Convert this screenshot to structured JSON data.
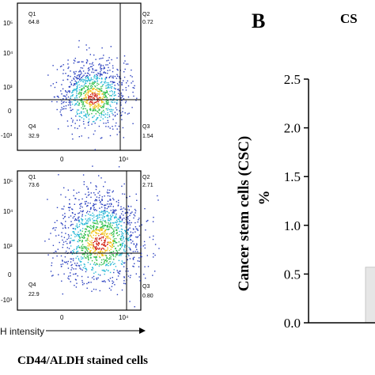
{
  "panel_b": {
    "label": "B",
    "title": "CS",
    "y_axis_label_main": "Cancer stem cells (CSC)",
    "y_axis_label_unit": "%"
  },
  "flow_plots": [
    {
      "y_ticks": [
        "10⁵",
        "10⁴",
        "10³",
        "0",
        "-10³"
      ],
      "x_ticks": [
        "0",
        "10⁴"
      ],
      "quadrants": {
        "Q1": {
          "label": "Q1",
          "value": "64.8"
        },
        "Q2": {
          "label": "Q2",
          "value": "0.72"
        },
        "Q3": {
          "label": "Q3",
          "value": "1.54"
        },
        "Q4": {
          "label": "Q4",
          "value": "32.9"
        }
      }
    },
    {
      "y_ticks": [
        "10⁵",
        "10⁴",
        "10³",
        "0",
        "-10³"
      ],
      "x_ticks": [
        "0",
        "10⁴"
      ],
      "quadrants": {
        "Q1": {
          "label": "Q1",
          "value": "73.6"
        },
        "Q2": {
          "label": "Q2",
          "value": "2.71"
        },
        "Q3": {
          "label": "Q3",
          "value": "0.80"
        },
        "Q4": {
          "label": "Q4",
          "value": "22.9"
        }
      }
    }
  ],
  "x_axis_caption": "H intensity",
  "bottom_caption": "CD44/ALDH stained cells",
  "chart_data": {
    "type": "bar",
    "title": "",
    "ylabel": "Cancer stem cells (CSC) %",
    "ylim": [
      0,
      2.5
    ],
    "yticks": [
      "0.0",
      "0.5",
      "1.0",
      "1.5",
      "2.0",
      "2.5"
    ],
    "categories": [
      ""
    ],
    "values": [
      0.57
    ],
    "bar_color": "#e6e6e6"
  }
}
